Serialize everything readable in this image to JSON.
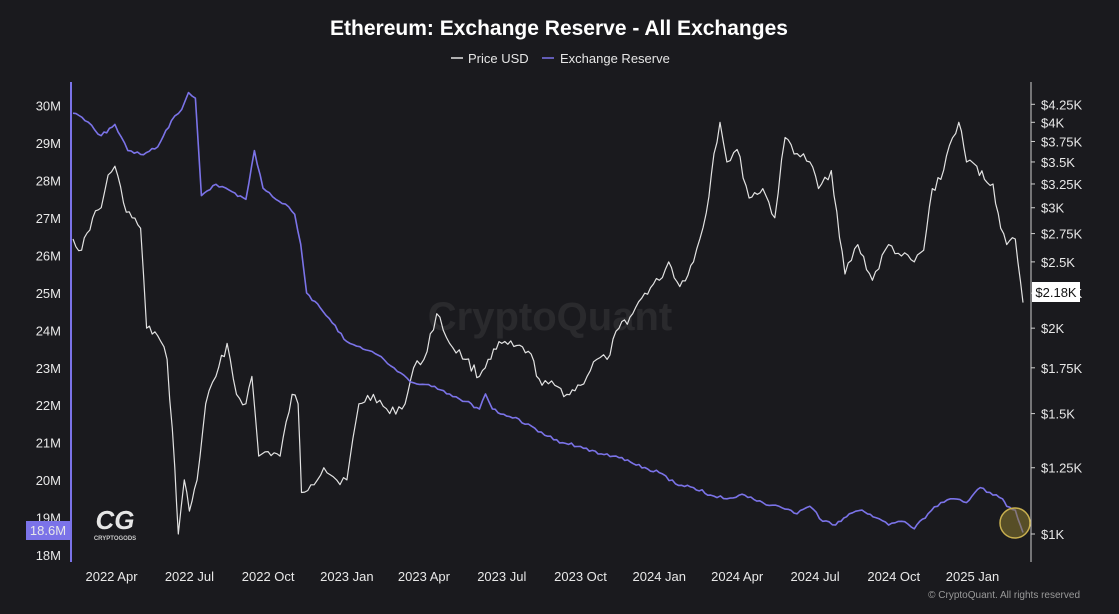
{
  "chart_data": {
    "type": "line",
    "title": "Ethereum: Exchange Reserve - All Exchanges",
    "legend": [
      "Price USD",
      "Exchange Reserve"
    ],
    "legend_placement": "top-center",
    "grid": false,
    "x_tick_labels": [
      "2022 Apr",
      "2022 Jul",
      "2022 Oct",
      "2023 Jan",
      "2023 Apr",
      "2023 Jul",
      "2023 Oct",
      "2024 Jan",
      "2024 Apr",
      "2024 Jul",
      "2024 Oct",
      "2025 Jan"
    ],
    "y_left": {
      "label": "",
      "range": [
        18,
        30.5
      ],
      "tick_labels": [
        "18M",
        "19M",
        "20M",
        "21M",
        "22M",
        "23M",
        "24M",
        "25M",
        "26M",
        "27M",
        "28M",
        "29M",
        "30M"
      ],
      "current_label": "18.6M",
      "current_value": 18.6
    },
    "y_right": {
      "label": "",
      "scale": "log",
      "range": [
        1000,
        4400
      ],
      "tick_labels": [
        "$1K",
        "$1.25K",
        "$1.5K",
        "$1.75K",
        "$2K",
        "$2.25K",
        "$2.5K",
        "$2.75K",
        "$3K",
        "$3.25K",
        "$3.5K",
        "$3.75K",
        "$4K",
        "$4.25K"
      ],
      "current_label": "$2.18K",
      "current_value": 2180
    },
    "x_range": [
      "2022-02-15",
      "2025-03-01"
    ],
    "series": [
      {
        "name": "Exchange Reserve",
        "axis": "left",
        "color": "#7b73e8",
        "x": [
          "2022-02-15",
          "2022-03-01",
          "2022-03-20",
          "2022-04-05",
          "2022-04-20",
          "2022-05-05",
          "2022-05-25",
          "2022-06-10",
          "2022-06-22",
          "2022-06-30",
          "2022-07-08",
          "2022-07-15",
          "2022-08-01",
          "2022-08-20",
          "2022-09-05",
          "2022-09-15",
          "2022-09-25",
          "2022-10-10",
          "2022-10-25",
          "2022-11-01",
          "2022-11-08",
          "2022-11-15",
          "2022-12-01",
          "2022-12-15",
          "2023-01-01",
          "2023-01-20",
          "2023-02-10",
          "2023-03-01",
          "2023-03-20",
          "2023-04-10",
          "2023-05-01",
          "2023-05-20",
          "2023-06-05",
          "2023-06-12",
          "2023-06-20",
          "2023-07-10",
          "2023-08-01",
          "2023-08-20",
          "2023-09-10",
          "2023-10-01",
          "2023-10-25",
          "2023-11-15",
          "2023-12-05",
          "2024-01-01",
          "2024-01-20",
          "2024-02-10",
          "2024-03-01",
          "2024-03-20",
          "2024-04-10",
          "2024-05-01",
          "2024-05-20",
          "2024-06-10",
          "2024-06-25",
          "2024-07-10",
          "2024-07-25",
          "2024-08-10",
          "2024-08-25",
          "2024-09-10",
          "2024-09-25",
          "2024-10-10",
          "2024-10-25",
          "2024-11-10",
          "2024-11-25",
          "2024-12-10",
          "2024-12-25",
          "2025-01-10",
          "2025-01-25",
          "2025-02-05",
          "2025-02-10",
          "2025-02-20",
          "2025-03-01"
        ],
        "values": [
          29.8,
          29.6,
          29.2,
          29.5,
          28.8,
          28.7,
          28.9,
          29.6,
          29.9,
          30.35,
          30.2,
          27.6,
          27.9,
          27.7,
          27.5,
          28.8,
          27.8,
          27.5,
          27.3,
          27.1,
          26.3,
          25.0,
          24.6,
          24.2,
          23.7,
          23.5,
          23.3,
          22.9,
          22.6,
          22.5,
          22.3,
          22.1,
          21.9,
          22.3,
          21.9,
          21.7,
          21.5,
          21.2,
          21.0,
          20.9,
          20.7,
          20.6,
          20.4,
          20.2,
          19.9,
          19.8,
          19.6,
          19.5,
          19.6,
          19.4,
          19.3,
          19.1,
          19.3,
          18.9,
          18.8,
          19.1,
          19.2,
          19.0,
          18.8,
          18.9,
          18.7,
          19.1,
          19.4,
          19.5,
          19.4,
          19.8,
          19.6,
          19.5,
          19.3,
          19.2,
          18.6
        ]
      },
      {
        "name": "Price USD",
        "axis": "right",
        "color": "#e2e2e2",
        "x": [
          "2022-02-15",
          "2022-02-25",
          "2022-03-10",
          "2022-03-20",
          "2022-03-28",
          "2022-04-05",
          "2022-04-15",
          "2022-04-25",
          "2022-05-05",
          "2022-05-12",
          "2022-05-25",
          "2022-06-05",
          "2022-06-14",
          "2022-06-18",
          "2022-06-25",
          "2022-07-01",
          "2022-07-10",
          "2022-07-20",
          "2022-08-01",
          "2022-08-14",
          "2022-08-25",
          "2022-09-05",
          "2022-09-12",
          "2022-09-20",
          "2022-10-01",
          "2022-10-15",
          "2022-10-29",
          "2022-11-05",
          "2022-11-09",
          "2022-11-20",
          "2022-12-05",
          "2022-12-20",
          "2023-01-01",
          "2023-01-15",
          "2023-02-01",
          "2023-02-20",
          "2023-03-10",
          "2023-03-20",
          "2023-04-01",
          "2023-04-16",
          "2023-05-01",
          "2023-05-20",
          "2023-06-05",
          "2023-06-15",
          "2023-07-01",
          "2023-07-15",
          "2023-08-01",
          "2023-08-17",
          "2023-09-01",
          "2023-09-15",
          "2023-10-01",
          "2023-10-20",
          "2023-11-01",
          "2023-11-15",
          "2023-12-01",
          "2023-12-15",
          "2024-01-01",
          "2024-01-12",
          "2024-01-25",
          "2024-02-10",
          "2024-02-25",
          "2024-03-05",
          "2024-03-12",
          "2024-03-20",
          "2024-04-01",
          "2024-04-15",
          "2024-05-01",
          "2024-05-15",
          "2024-05-27",
          "2024-06-10",
          "2024-06-25",
          "2024-07-05",
          "2024-07-20",
          "2024-08-05",
          "2024-08-20",
          "2024-09-06",
          "2024-09-25",
          "2024-10-10",
          "2024-10-25",
          "2024-11-05",
          "2024-11-15",
          "2024-11-25",
          "2024-12-05",
          "2024-12-16",
          "2024-12-25",
          "2025-01-06",
          "2025-01-15",
          "2025-01-25",
          "2025-02-03",
          "2025-02-10",
          "2025-02-20",
          "2025-03-01"
        ],
        "values": [
          2700,
          2600,
          2900,
          3000,
          3350,
          3450,
          3050,
          2900,
          2800,
          2000,
          1950,
          1800,
          1250,
          1000,
          1200,
          1080,
          1200,
          1550,
          1700,
          1900,
          1600,
          1550,
          1700,
          1300,
          1320,
          1300,
          1600,
          1550,
          1150,
          1180,
          1250,
          1200,
          1200,
          1550,
          1600,
          1500,
          1550,
          1750,
          1800,
          2100,
          1900,
          1800,
          1700,
          1800,
          1900,
          1880,
          1850,
          1650,
          1650,
          1600,
          1650,
          1800,
          1800,
          2000,
          2100,
          2250,
          2350,
          2500,
          2300,
          2500,
          2950,
          3600,
          4000,
          3500,
          3650,
          3100,
          3200,
          2900,
          3800,
          3600,
          3500,
          3200,
          3400,
          2400,
          2650,
          2350,
          2650,
          2550,
          2500,
          2600,
          3200,
          3300,
          3700,
          4000,
          3500,
          3450,
          3300,
          3250,
          2800,
          2650,
          2700,
          2180
        ]
      }
    ]
  },
  "watermark": "CryptoQuant",
  "logo": {
    "mark": "CG",
    "caption": "CRYPTOGODS"
  },
  "footer": "© CryptoQuant. All rights reserved",
  "colors": {
    "background": "#1a1a1e",
    "reserve": "#7b73e8",
    "price": "#e2e2e2",
    "axis": "#d0d0d0"
  }
}
